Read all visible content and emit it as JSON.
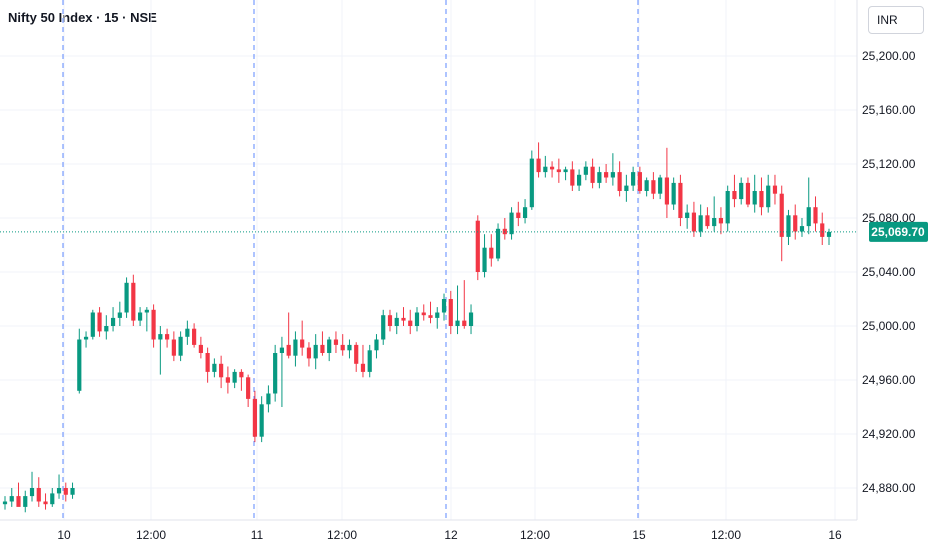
{
  "header": {
    "title": "Nifty 50 Index · 15 · NSE",
    "currency": "INR"
  },
  "colors": {
    "up": "#089981",
    "down": "#f23645",
    "grid": "#f0f3fa",
    "session": "#2962ff",
    "text": "#131722"
  },
  "chart_data": {
    "type": "candlestick",
    "title": "Nifty 50 Index · 15 · NSE",
    "ylim": [
      24860,
      25230
    ],
    "y_ticks": [
      "25,200.00",
      "25,160.00",
      "25,120.00",
      "25,080.00",
      "25,040.00",
      "25,000.00",
      "24,960.00",
      "24,920.00",
      "24,880.00"
    ],
    "y_tick_values": [
      25200,
      25160,
      25120,
      25080,
      25040,
      25000,
      24960,
      24920,
      24880
    ],
    "x_ticks": [
      "10",
      "12:00",
      "11",
      "12:00",
      "12",
      "12:00",
      "15",
      "12:00",
      "16"
    ],
    "session_breaks": [
      "10",
      "11",
      "12",
      "15"
    ],
    "current_price": "25,069.70",
    "current_price_value": 25069.7,
    "candles": [
      [
        24868,
        24874,
        24864,
        24870
      ],
      [
        24870,
        24880,
        24866,
        24874
      ],
      [
        24874,
        24884,
        24868,
        24866
      ],
      [
        24866,
        24878,
        24862,
        24874
      ],
      [
        24874,
        24892,
        24870,
        24880
      ],
      [
        24880,
        24888,
        24866,
        24870
      ],
      [
        24870,
        24876,
        24864,
        24868
      ],
      [
        24868,
        24880,
        24866,
        24876
      ],
      [
        24876,
        24890,
        24872,
        24880
      ],
      [
        24880,
        24884,
        24870,
        24875
      ],
      [
        24875,
        24884,
        24872,
        24880
      ],
      [
        24952,
        24998,
        24950,
        24990
      ],
      [
        24990,
        24996,
        24984,
        24992
      ],
      [
        24992,
        25012,
        24990,
        25010
      ],
      [
        25010,
        25014,
        24992,
        24996
      ],
      [
        24996,
        25008,
        24990,
        25000
      ],
      [
        25000,
        25014,
        24996,
        25006
      ],
      [
        25006,
        25018,
        25000,
        25010
      ],
      [
        25010,
        25036,
        25006,
        25032
      ],
      [
        25032,
        25038,
        25000,
        25004
      ],
      [
        25004,
        25014,
        25000,
        25010
      ],
      [
        25010,
        25014,
        24996,
        25012
      ],
      [
        25012,
        25016,
        24984,
        24990
      ],
      [
        24990,
        25000,
        24964,
        24994
      ],
      [
        24994,
        24998,
        24984,
        24990
      ],
      [
        24990,
        24996,
        24974,
        24978
      ],
      [
        24978,
        24996,
        24974,
        24992
      ],
      [
        24992,
        25004,
        24986,
        24998
      ],
      [
        24998,
        25002,
        24984,
        24986
      ],
      [
        24986,
        24992,
        24976,
        24980
      ],
      [
        24980,
        24984,
        24958,
        24966
      ],
      [
        24966,
        24976,
        24962,
        24972
      ],
      [
        24972,
        24978,
        24954,
        24962
      ],
      [
        24962,
        24970,
        24950,
        24958
      ],
      [
        24958,
        24968,
        24954,
        24966
      ],
      [
        24966,
        24968,
        24952,
        24962
      ],
      [
        24962,
        24964,
        24940,
        24946
      ],
      [
        24946,
        24952,
        24914,
        24918
      ],
      [
        24918,
        24948,
        24914,
        24942
      ],
      [
        24942,
        24956,
        24936,
        24950
      ],
      [
        24950,
        24986,
        24944,
        24980
      ],
      [
        24980,
        24992,
        24940,
        24984
      ],
      [
        24986,
        25010,
        24976,
        24978
      ],
      [
        24978,
        24996,
        24970,
        24990
      ],
      [
        24990,
        25004,
        24978,
        24984
      ],
      [
        24984,
        24988,
        24970,
        24976
      ],
      [
        24976,
        24994,
        24968,
        24986
      ],
      [
        24986,
        24996,
        24978,
        24980
      ],
      [
        24980,
        24992,
        24974,
        24990
      ],
      [
        24990,
        24996,
        24980,
        24986
      ],
      [
        24986,
        24994,
        24978,
        24982
      ],
      [
        24982,
        24990,
        24976,
        24986
      ],
      [
        24986,
        24988,
        24966,
        24972
      ],
      [
        24972,
        24986,
        24962,
        24966
      ],
      [
        24966,
        24986,
        24962,
        24982
      ],
      [
        24982,
        24994,
        24976,
        24990
      ],
      [
        24990,
        25012,
        24986,
        25008
      ],
      [
        25008,
        25012,
        24996,
        25000
      ],
      [
        25000,
        25010,
        24994,
        25006
      ],
      [
        25006,
        25014,
        25000,
        25004
      ],
      [
        25004,
        25012,
        24994,
        25000
      ],
      [
        25000,
        25014,
        24996,
        25010
      ],
      [
        25010,
        25016,
        25004,
        25008
      ],
      [
        25008,
        25018,
        25002,
        25006
      ],
      [
        25006,
        25014,
        24998,
        25010
      ],
      [
        25010,
        25024,
        25004,
        25020
      ],
      [
        25020,
        25026,
        24994,
        25000
      ],
      [
        25000,
        25030,
        24994,
        25004
      ],
      [
        25004,
        25034,
        24998,
        25000
      ],
      [
        25000,
        25016,
        24994,
        25010
      ],
      [
        25078,
        25082,
        25034,
        25040
      ],
      [
        25040,
        25068,
        25036,
        25058
      ],
      [
        25058,
        25068,
        25044,
        25050
      ],
      [
        25050,
        25076,
        25048,
        25072
      ],
      [
        25072,
        25080,
        25064,
        25068
      ],
      [
        25068,
        25088,
        25064,
        25084
      ],
      [
        25084,
        25092,
        25074,
        25080
      ],
      [
        25080,
        25094,
        25076,
        25088
      ],
      [
        25088,
        25130,
        25086,
        25124
      ],
      [
        25124,
        25136,
        25110,
        25114
      ],
      [
        25114,
        25126,
        25110,
        25118
      ],
      [
        25118,
        25122,
        25110,
        25116
      ],
      [
        25116,
        25124,
        25106,
        25114
      ],
      [
        25114,
        25118,
        25108,
        25116
      ],
      [
        25116,
        25122,
        25100,
        25104
      ],
      [
        25104,
        25116,
        25100,
        25112
      ],
      [
        25112,
        25122,
        25108,
        25118
      ],
      [
        25118,
        25124,
        25102,
        25106
      ],
      [
        25106,
        25118,
        25102,
        25114
      ],
      [
        25114,
        25120,
        25106,
        25110
      ],
      [
        25110,
        25128,
        25104,
        25114
      ],
      [
        25114,
        25122,
        25096,
        25100
      ],
      [
        25100,
        25112,
        25092,
        25104
      ],
      [
        25104,
        25118,
        25100,
        25114
      ],
      [
        25114,
        25118,
        25098,
        25100
      ],
      [
        25100,
        25110,
        25096,
        25108
      ],
      [
        25108,
        25114,
        25094,
        25098
      ],
      [
        25098,
        25112,
        25094,
        25110
      ],
      [
        25110,
        25132,
        25080,
        25090
      ],
      [
        25090,
        25110,
        25086,
        25106
      ],
      [
        25106,
        25112,
        25074,
        25080
      ],
      [
        25080,
        25090,
        25072,
        25084
      ],
      [
        25084,
        25092,
        25066,
        25070
      ],
      [
        25070,
        25090,
        25066,
        25082
      ],
      [
        25082,
        25088,
        25072,
        25074
      ],
      [
        25074,
        25096,
        25070,
        25080
      ],
      [
        25080,
        25088,
        25068,
        25076
      ],
      [
        25076,
        25104,
        25070,
        25100
      ],
      [
        25100,
        25112,
        25088,
        25094
      ],
      [
        25094,
        25110,
        25090,
        25106
      ],
      [
        25106,
        25110,
        25088,
        25090
      ],
      [
        25090,
        25112,
        25084,
        25100
      ],
      [
        25100,
        25110,
        25082,
        25088
      ],
      [
        25088,
        25112,
        25084,
        25104
      ],
      [
        25104,
        25112,
        25090,
        25098
      ],
      [
        25098,
        25104,
        25048,
        25066
      ],
      [
        25066,
        25086,
        25060,
        25082
      ],
      [
        25082,
        25090,
        25064,
        25070
      ],
      [
        25070,
        25080,
        25066,
        25074
      ],
      [
        25074,
        25110,
        25068,
        25088
      ],
      [
        25088,
        25096,
        25070,
        25076
      ],
      [
        25076,
        25084,
        25060,
        25066
      ],
      [
        25066,
        25072,
        25060,
        25069.7
      ]
    ]
  }
}
